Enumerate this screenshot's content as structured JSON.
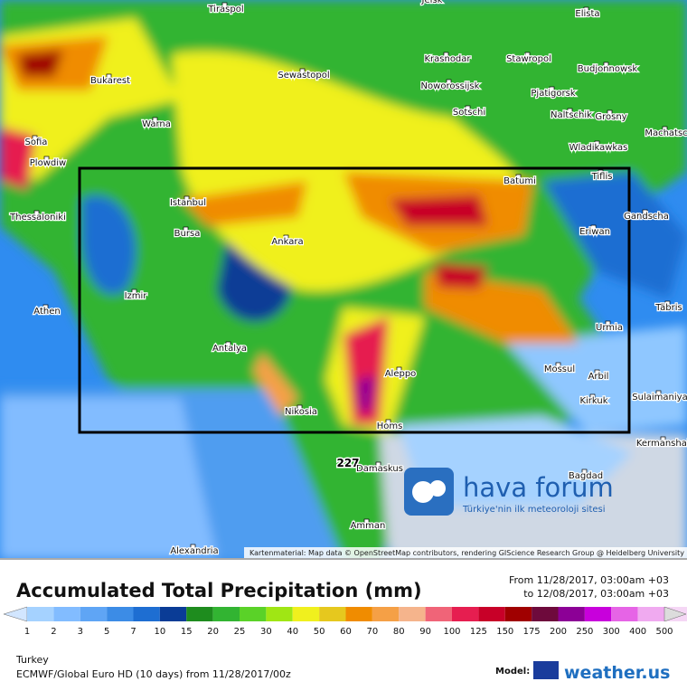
{
  "map": {
    "cities": [
      "Tiraspol",
      "Jeisk",
      "Elista",
      "Krasnodar",
      "Stawropol",
      "Budjonnowsk",
      "Bukarest",
      "Sewastopol",
      "Noworossijsk",
      "Pjatigorsk",
      "Naltschik",
      "Grosny",
      "Sotschi",
      "Machatsc",
      "Sofia",
      "Warna",
      "Wladikawkas",
      "Plowdiw",
      "Tiflis",
      "Batumi",
      "Thessaloniki",
      "Istanbul",
      "Gandscha",
      "Bursa",
      "Ankara",
      "Eriwan",
      "Izmir",
      "Athen",
      "Täbris",
      "Urmia",
      "Antalya",
      "Mossul",
      "Arbil",
      "Aleppo",
      "Sulaimaniya",
      "Kirkuk",
      "Nikosia",
      "Homs",
      "Kermanshah",
      "Damaskus",
      "Bagdad",
      "Amman",
      "Alexandria"
    ],
    "max_label": "227",
    "attribution": "Kartenmaterial: Map data © OpenStreetMap contributors, rendering GIScience Research Group @ Heidelberg University"
  },
  "logo": {
    "name": "hava forum",
    "tagline": "Türkiye'nin ilk meteoroloji sitesi"
  },
  "header": {
    "title": "Accumulated Total Precipitation (mm)",
    "from": "From 11/28/2017, 03:00am +03",
    "to": "to 12/08/2017, 03:00am +03"
  },
  "legend": {
    "labels": [
      "1",
      "2",
      "3",
      "5",
      "7",
      "10",
      "15",
      "20",
      "25",
      "30",
      "40",
      "50",
      "60",
      "70",
      "80",
      "90",
      "100",
      "125",
      "150",
      "175",
      "200",
      "250",
      "300",
      "400",
      "500"
    ],
    "colors": [
      "#d2e6ff",
      "#a5d2ff",
      "#82bcff",
      "#5fa5f5",
      "#3c8ce6",
      "#1e6ed2",
      "#0a3c96",
      "#1e8c1e",
      "#32b432",
      "#5ad228",
      "#a0e614",
      "#f0f01e",
      "#e6c81e",
      "#f08c00",
      "#f5a046",
      "#f5b48c",
      "#f06478",
      "#e61e50",
      "#c80028",
      "#a00000",
      "#6e0a3c",
      "#8c0096",
      "#c800dc",
      "#e664e6",
      "#f0aaf0",
      "#f5d7f5",
      "#dcdcdc"
    ]
  },
  "footer": {
    "region": "Turkey",
    "model_run": "ECMWF/Global Euro HD (10 days) from 11/28/2017/00z",
    "model_label": "Model:",
    "brand": "weather.us"
  }
}
